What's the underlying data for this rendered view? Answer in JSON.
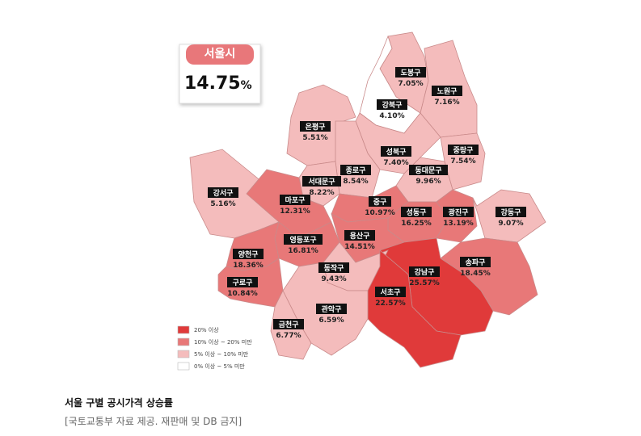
{
  "summary": {
    "region": "서울시",
    "rate": "14.75",
    "unit": "%"
  },
  "districts": [
    {
      "name": "도봉구",
      "rate": "7.05%",
      "color": "#f4bcbc"
    },
    {
      "name": "노원구",
      "rate": "7.16%",
      "color": "#f4bcbc"
    },
    {
      "name": "강북구",
      "rate": "4.10%",
      "color": "#ffffff"
    },
    {
      "name": "은평구",
      "rate": "5.51%",
      "color": "#f4bcbc"
    },
    {
      "name": "성북구",
      "rate": "7.40%",
      "color": "#f4bcbc"
    },
    {
      "name": "중랑구",
      "rate": "7.54%",
      "color": "#f4bcbc"
    },
    {
      "name": "종로구",
      "rate": "8.54%",
      "color": "#f4bcbc"
    },
    {
      "name": "동대문구",
      "rate": "9.96%",
      "color": "#f4bcbc"
    },
    {
      "name": "서대문구",
      "rate": "8.22%",
      "color": "#f4bcbc"
    },
    {
      "name": "강서구",
      "rate": "5.16%",
      "color": "#f4bcbc"
    },
    {
      "name": "마포구",
      "rate": "12.31%",
      "color": "#e87878"
    },
    {
      "name": "중구",
      "rate": "10.97%",
      "color": "#e87878"
    },
    {
      "name": "성동구",
      "rate": "16.25%",
      "color": "#e87878"
    },
    {
      "name": "광진구",
      "rate": "13.19%",
      "color": "#e87878"
    },
    {
      "name": "강동구",
      "rate": "9.07%",
      "color": "#f4bcbc"
    },
    {
      "name": "영등포구",
      "rate": "16.81%",
      "color": "#e87878"
    },
    {
      "name": "용산구",
      "rate": "14.51%",
      "color": "#e87878"
    },
    {
      "name": "양천구",
      "rate": "18.36%",
      "color": "#e87878"
    },
    {
      "name": "송파구",
      "rate": "18.45%",
      "color": "#e87878"
    },
    {
      "name": "강남구",
      "rate": "25.57%",
      "color": "#e03a3a"
    },
    {
      "name": "동작구",
      "rate": "9.43%",
      "color": "#f4bcbc"
    },
    {
      "name": "구로구",
      "rate": "10.84%",
      "color": "#e87878"
    },
    {
      "name": "서초구",
      "rate": "22.57%",
      "color": "#e03a3a"
    },
    {
      "name": "관악구",
      "rate": "6.59%",
      "color": "#f4bcbc"
    },
    {
      "name": "금천구",
      "rate": "6.77%",
      "color": "#f4bcbc"
    }
  ],
  "legend": [
    {
      "label": "20% 이상",
      "color": "#e03a3a"
    },
    {
      "label": "10% 이상 ~ 20% 미만",
      "color": "#e87878"
    },
    {
      "label": "5% 이상 ~ 10% 미만",
      "color": "#f4bcbc"
    },
    {
      "label": "0% 이상 ~ 5% 미만",
      "color": "#ffffff"
    }
  ],
  "caption": {
    "title": "서울 구별 공시가격 상승률",
    "source": "[국토교통부 자료 제공. 재판매 및 DB 금지]"
  }
}
